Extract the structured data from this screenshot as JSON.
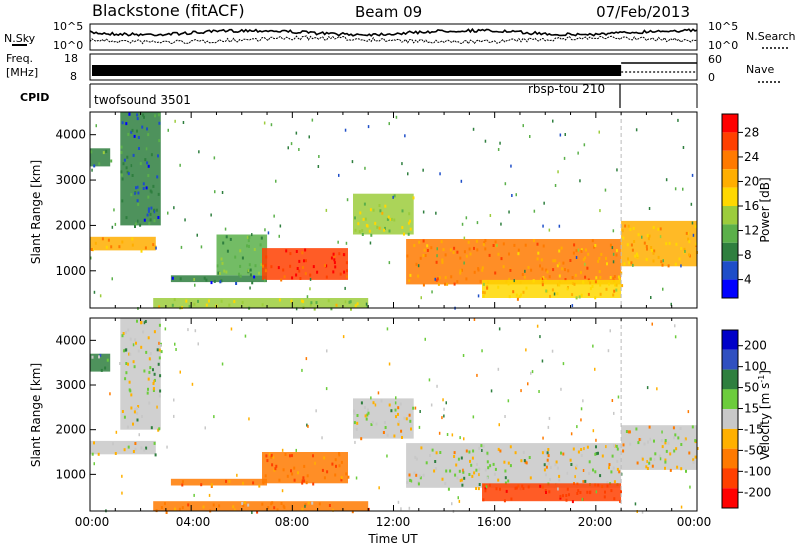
{
  "header": {
    "station": "Blackstone (fitACF)",
    "beam": "Beam 09",
    "date": "07/Feb/2013"
  },
  "noise_panel": {
    "left_label": "N.Sky",
    "right_label": "N.Search",
    "tick_high": "10^5",
    "tick_low": "10^0"
  },
  "freq_panel": {
    "label_line1": "Freq.",
    "label_line2": "[MHz]",
    "ticks_left": [
      "18",
      "8"
    ],
    "ticks_right": [
      "60",
      "0"
    ],
    "right_label": "Nave"
  },
  "cpid_panel": {
    "label": "CPID",
    "modes": [
      "twofsound 3501",
      "rbsp-tou 210"
    ]
  },
  "x_axis": {
    "label": "Time UT",
    "tick_labels": [
      "00:00",
      "04:00",
      "08:00",
      "12:00",
      "16:00",
      "20:00",
      "00:00"
    ]
  },
  "power_panel": {
    "ylabel": "Slant Range [km]",
    "ytick_labels": [
      "4000",
      "3000",
      "2000",
      "1000"
    ],
    "colorbar_label": "Power [dB]",
    "colorbar_ticks": [
      "28",
      "24",
      "20",
      "16",
      "12",
      "8",
      "4"
    ],
    "colors": [
      "#0000ff",
      "#1e4ec8",
      "#2f7f3f",
      "#5bb04a",
      "#9ccc3c",
      "#ffd800",
      "#ffae00",
      "#ff7a00",
      "#ff4000",
      "#ff0000"
    ]
  },
  "velocity_panel": {
    "ylabel": "Slant Range [km]",
    "ytick_labels": [
      "4000",
      "3000",
      "2000",
      "1000"
    ],
    "colorbar_label": "Velocity [m s",
    "colorbar_label_sup": "-1",
    "colorbar_label_end": "]",
    "colorbar_ticks": [
      "200",
      "100",
      "50",
      "15",
      "-15",
      "-50",
      "-100",
      "-200"
    ],
    "colors": [
      "#0000c8",
      "#3050c0",
      "#2f7f3f",
      "#6ccc3c",
      "#c8c8c8",
      "#ffb000",
      "#ff7a00",
      "#ff4000",
      "#ff0000"
    ]
  },
  "chart_data": {
    "type": "heatmap",
    "x_range_hours": [
      0,
      24
    ],
    "y_range_km": [
      180,
      4500
    ],
    "mode_change_hour": 21,
    "power_regions": [
      {
        "t0": 0.0,
        "t1": 2.6,
        "r0": 1450,
        "r1": 1750,
        "level": 20
      },
      {
        "t0": 0.0,
        "t1": 0.8,
        "r0": 3300,
        "r1": 3700,
        "level": 8
      },
      {
        "t0": 1.2,
        "t1": 2.8,
        "r0": 2000,
        "r1": 4500,
        "level": 6
      },
      {
        "t0": 3.2,
        "t1": 7.0,
        "r0": 750,
        "r1": 900,
        "level": 6
      },
      {
        "t0": 5.0,
        "t1": 7.0,
        "r0": 900,
        "r1": 1800,
        "level": 10
      },
      {
        "t0": 6.8,
        "t1": 10.2,
        "r0": 800,
        "r1": 1500,
        "level": 28
      },
      {
        "t0": 10.4,
        "t1": 12.8,
        "r0": 1800,
        "r1": 2700,
        "level": 14
      },
      {
        "t0": 12.5,
        "t1": 21.0,
        "r0": 700,
        "r1": 1700,
        "level": 22
      },
      {
        "t0": 15.5,
        "t1": 21.0,
        "r0": 400,
        "r1": 800,
        "level": 18
      },
      {
        "t0": 21.0,
        "t1": 24.0,
        "r0": 1100,
        "r1": 2100,
        "level": 20
      },
      {
        "t0": 2.5,
        "t1": 11.0,
        "r0": 180,
        "r1": 400,
        "level": 14
      }
    ],
    "velocity_regions": [
      {
        "t0": 0.0,
        "t1": 2.6,
        "r0": 1450,
        "r1": 1750,
        "v": 0
      },
      {
        "t0": 0.0,
        "t1": 0.8,
        "r0": 3300,
        "r1": 3700,
        "v": 60
      },
      {
        "t0": 1.2,
        "t1": 2.8,
        "r0": 2000,
        "r1": 4500,
        "v": 10
      },
      {
        "t0": 3.2,
        "t1": 7.0,
        "r0": 750,
        "r1": 900,
        "v": -70
      },
      {
        "t0": 6.8,
        "t1": 10.2,
        "r0": 800,
        "r1": 1500,
        "v": -90
      },
      {
        "t0": 10.4,
        "t1": 12.8,
        "r0": 1800,
        "r1": 2700,
        "v": 5
      },
      {
        "t0": 12.5,
        "t1": 21.0,
        "r0": 700,
        "r1": 1700,
        "v": 0
      },
      {
        "t0": 15.5,
        "t1": 21.0,
        "r0": 400,
        "r1": 800,
        "v": -160
      },
      {
        "t0": 21.0,
        "t1": 24.0,
        "r0": 1100,
        "r1": 2100,
        "v": -10
      },
      {
        "t0": 2.5,
        "t1": 11.0,
        "r0": 180,
        "r1": 400,
        "v": -60
      }
    ]
  }
}
